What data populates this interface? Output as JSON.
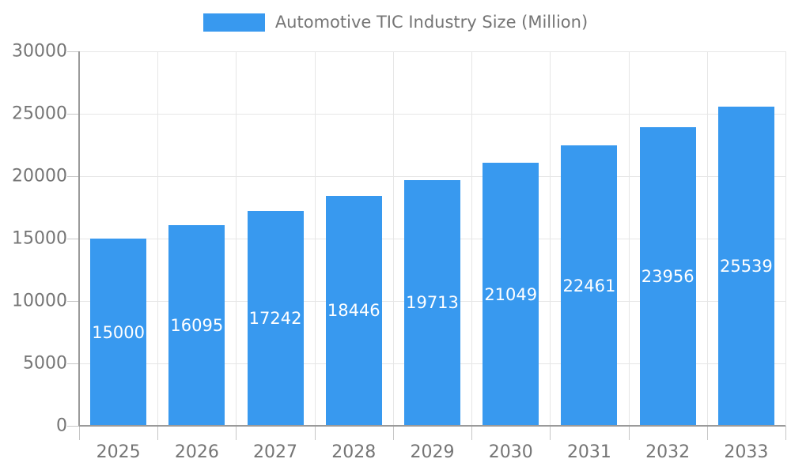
{
  "chart_data": {
    "type": "bar",
    "title": "Automotive TIC Industry Size (Million)",
    "categories": [
      "2025",
      "2026",
      "2027",
      "2028",
      "2029",
      "2030",
      "2031",
      "2032",
      "2033"
    ],
    "values": [
      15000,
      16095,
      17242,
      18446,
      19713,
      21049,
      22461,
      23956,
      25539
    ],
    "series": [
      {
        "name": "Automotive TIC Industry Size (Million)",
        "values": [
          15000,
          16095,
          17242,
          18446,
          19713,
          21049,
          22461,
          23956,
          25539
        ]
      }
    ],
    "xlabel": "",
    "ylabel": "",
    "ylim": [
      0,
      30000
    ],
    "yticks": [
      0,
      5000,
      10000,
      15000,
      20000,
      25000,
      30000
    ],
    "grid": true,
    "legend_position": "top",
    "bar_color": "#3899EF",
    "value_label_color": "#FFFFFF",
    "axis_text_color": "#757575"
  }
}
